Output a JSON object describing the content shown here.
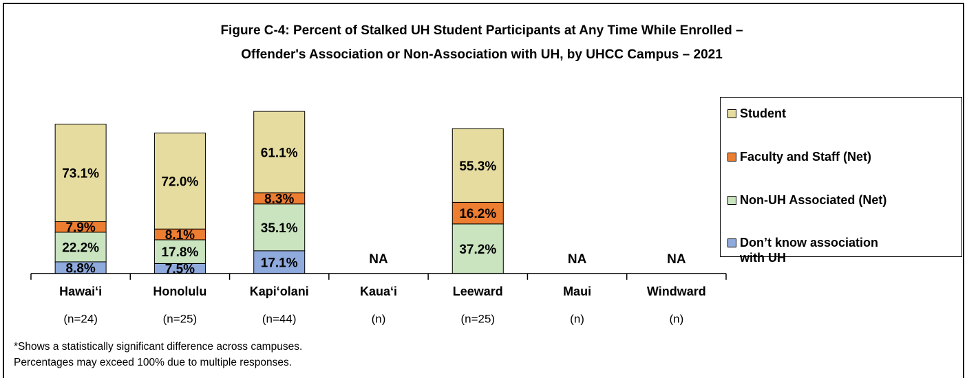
{
  "chart_data": {
    "type": "stacked_bar",
    "title": [
      "Figure C-4: Percent of Stalked UH Student Participants at Any Time While Enrolled –",
      "Offender's Association or Non-Association with UH, by UHCC Campus – 2021"
    ],
    "categories": [
      "Hawai‘i",
      "Honolulu",
      "Kapi‘olani",
      "Kaua‘i",
      "Leeward",
      "Maui",
      "Windward"
    ],
    "n_labels": [
      "(n=24)",
      "(n=25)",
      "(n=44)",
      "(n)",
      "(n=25)",
      "(n)",
      "(n)"
    ],
    "na_label": "NA",
    "ylim": [
      0,
      140
    ],
    "series": [
      {
        "name": "Don’t know association with UH",
        "color": "#8faadc",
        "values": [
          8.8,
          7.5,
          17.1,
          null,
          null,
          null,
          null
        ],
        "value_labels": [
          "8.8%",
          "7.5%",
          "17.1%",
          null,
          null,
          null,
          null
        ]
      },
      {
        "name": "Non-UH Associated (Net)",
        "color": "#c9e4bf",
        "values": [
          22.2,
          17.8,
          35.1,
          null,
          37.2,
          null,
          null
        ],
        "value_labels": [
          "22.2%",
          "17.8%",
          "35.1%",
          null,
          "37.2%",
          null,
          null
        ]
      },
      {
        "name": "Faculty and Staff (Net)",
        "color": "#ed7d31",
        "values": [
          7.9,
          8.1,
          8.3,
          null,
          16.2,
          null,
          null
        ],
        "value_labels": [
          "7.9%",
          "8.1%",
          "8.3%",
          null,
          "16.2%",
          null,
          null
        ]
      },
      {
        "name": "Student",
        "color": "#e6dc9f",
        "values": [
          73.1,
          72.0,
          61.1,
          null,
          55.3,
          null,
          null
        ],
        "value_labels": [
          "73.1%",
          "72.0%",
          "61.1%",
          null,
          "55.3%",
          null,
          null
        ]
      }
    ],
    "notes": [
      "*Shows a statistically significant difference across campuses.",
      "Percentages may exceed 100% due to multiple responses."
    ]
  }
}
